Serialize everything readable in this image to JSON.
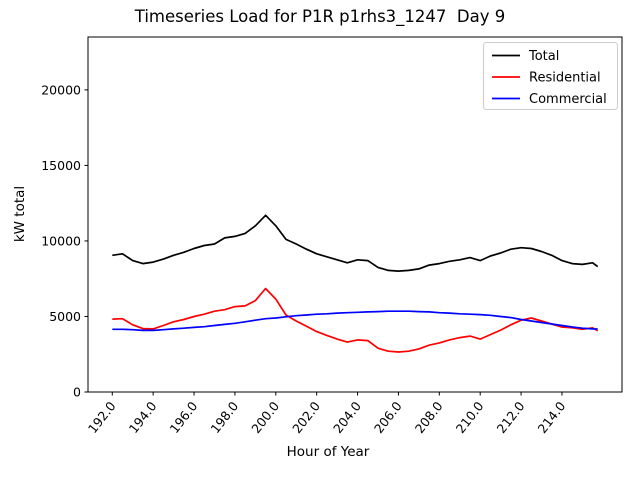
{
  "chart_data": {
    "type": "line",
    "title": "Timeseries Load for P1R p1rhs3_1247  Day 9",
    "xlabel": "Hour of Year",
    "ylabel": "kW total",
    "xlim": [
      190.8125,
      216.9375
    ],
    "ylim": [
      0,
      23500
    ],
    "grid": false,
    "xticks": [
      192,
      194,
      196,
      198,
      200,
      202,
      204,
      206,
      208,
      210,
      212,
      214
    ],
    "xtick_labels": [
      "192.0",
      "194.0",
      "196.0",
      "198.0",
      "200.0",
      "202.0",
      "204.0",
      "206.0",
      "208.0",
      "210.0",
      "212.0",
      "214.0"
    ],
    "yticks": [
      0,
      5000,
      10000,
      15000,
      20000
    ],
    "ytick_labels": [
      "0",
      "5000",
      "10000",
      "15000",
      "20000"
    ],
    "legend": {
      "position": "upper right",
      "entries": [
        {
          "label": "Total",
          "color": "#000000"
        },
        {
          "label": "Residential",
          "color": "#ff0000"
        },
        {
          "label": "Commercial",
          "color": "#0000ff"
        }
      ]
    },
    "x": [
      192.0,
      192.5,
      193.0,
      193.5,
      194.0,
      194.5,
      195.0,
      195.5,
      196.0,
      196.5,
      197.0,
      197.5,
      198.0,
      198.5,
      199.0,
      199.5,
      200.0,
      200.5,
      201.0,
      201.5,
      202.0,
      202.5,
      203.0,
      203.5,
      204.0,
      204.5,
      205.0,
      205.5,
      206.0,
      206.5,
      207.0,
      207.5,
      208.0,
      208.5,
      209.0,
      209.5,
      210.0,
      210.5,
      211.0,
      211.5,
      212.0,
      212.5,
      213.0,
      213.5,
      214.0,
      214.5,
      215.0,
      215.5,
      215.75
    ],
    "series": [
      {
        "name": "Total",
        "color": "#000000",
        "values": [
          9050,
          9150,
          8700,
          8500,
          8600,
          8800,
          9050,
          9250,
          9500,
          9700,
          9800,
          10200,
          10300,
          10500,
          11000,
          11700,
          11000,
          10100,
          9800,
          9450,
          9150,
          8950,
          8750,
          8550,
          8750,
          8700,
          8250,
          8050,
          8000,
          8050,
          8150,
          8400,
          8500,
          8650,
          8750,
          8900,
          8700,
          9000,
          9200,
          9450,
          9550,
          9500,
          9300,
          9050,
          8700,
          8500,
          8450,
          8550,
          8300
        ]
      },
      {
        "name": "Residential",
        "color": "#ff0000",
        "values": [
          4825,
          4850,
          4450,
          4200,
          4175,
          4400,
          4650,
          4800,
          5000,
          5150,
          5350,
          5450,
          5650,
          5700,
          6050,
          6850,
          6150,
          5100,
          4700,
          4350,
          4000,
          3750,
          3500,
          3300,
          3450,
          3400,
          2900,
          2700,
          2650,
          2700,
          2850,
          3100,
          3250,
          3450,
          3600,
          3700,
          3500,
          3800,
          4100,
          4450,
          4750,
          4900,
          4700,
          4500,
          4300,
          4250,
          4150,
          4250,
          4050
        ]
      },
      {
        "name": "Commercial",
        "color": "#0000ff",
        "values": [
          4150,
          4150,
          4125,
          4075,
          4075,
          4125,
          4175,
          4225,
          4275,
          4325,
          4400,
          4475,
          4550,
          4650,
          4750,
          4850,
          4900,
          4975,
          5050,
          5100,
          5150,
          5175,
          5225,
          5250,
          5275,
          5300,
          5325,
          5350,
          5350,
          5350,
          5325,
          5300,
          5250,
          5225,
          5175,
          5150,
          5125,
          5075,
          5000,
          4925,
          4800,
          4700,
          4600,
          4500,
          4400,
          4300,
          4225,
          4180,
          4170
        ]
      }
    ]
  }
}
